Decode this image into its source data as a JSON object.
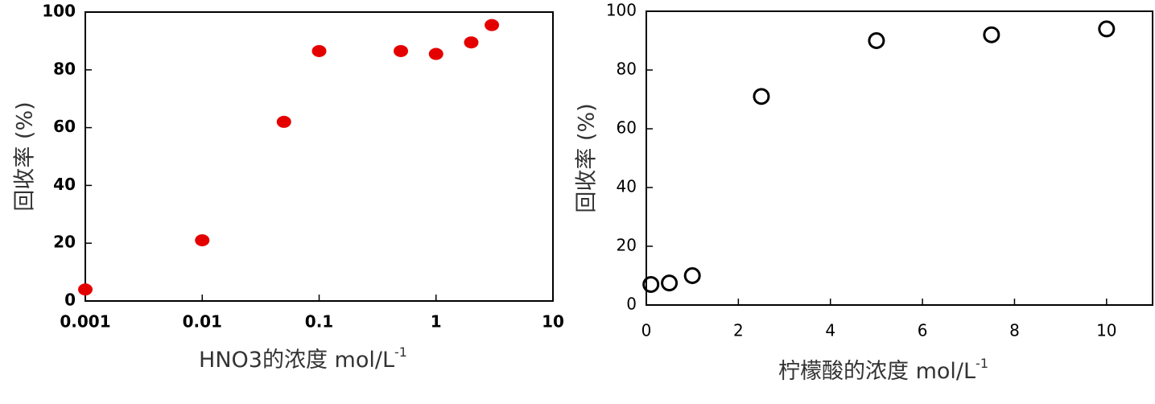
{
  "chart_data": [
    {
      "type": "scatter",
      "xscale": "log",
      "marker": "filled",
      "color": "#e50000",
      "tick_font_weight": "bold",
      "ylabel": "回收率 (%)",
      "xlabel": "HNO3的浓度 mol/L",
      "xlabel_sup": "-1",
      "x": [
        0.001,
        0.01,
        0.05,
        0.1,
        0.5,
        1,
        2,
        3
      ],
      "values": [
        4,
        21,
        62,
        86.5,
        86.5,
        85.5,
        89.5,
        95.5
      ],
      "xlim": [
        0.001,
        10
      ],
      "xticks": [
        0.001,
        0.01,
        0.1,
        1,
        10
      ],
      "ylim": [
        0,
        100
      ],
      "yticks": [
        0,
        20,
        40,
        60,
        80,
        100
      ]
    },
    {
      "type": "scatter",
      "xscale": "linear",
      "marker": "open",
      "color": "#000000",
      "tick_font_weight": "normal",
      "ylabel": "回收率 (%)",
      "xlabel": "柠檬酸的浓度 mol/L",
      "xlabel_sup": "-1",
      "x": [
        0.1,
        0.5,
        1,
        2.5,
        5,
        7.5,
        10
      ],
      "values": [
        7,
        7.5,
        10,
        71,
        90,
        92,
        94
      ],
      "xlim": [
        0,
        11
      ],
      "xticks": [
        0,
        2,
        4,
        6,
        8,
        10
      ],
      "ylim": [
        0,
        100
      ],
      "yticks": [
        0,
        20,
        40,
        60,
        80,
        100
      ]
    }
  ]
}
